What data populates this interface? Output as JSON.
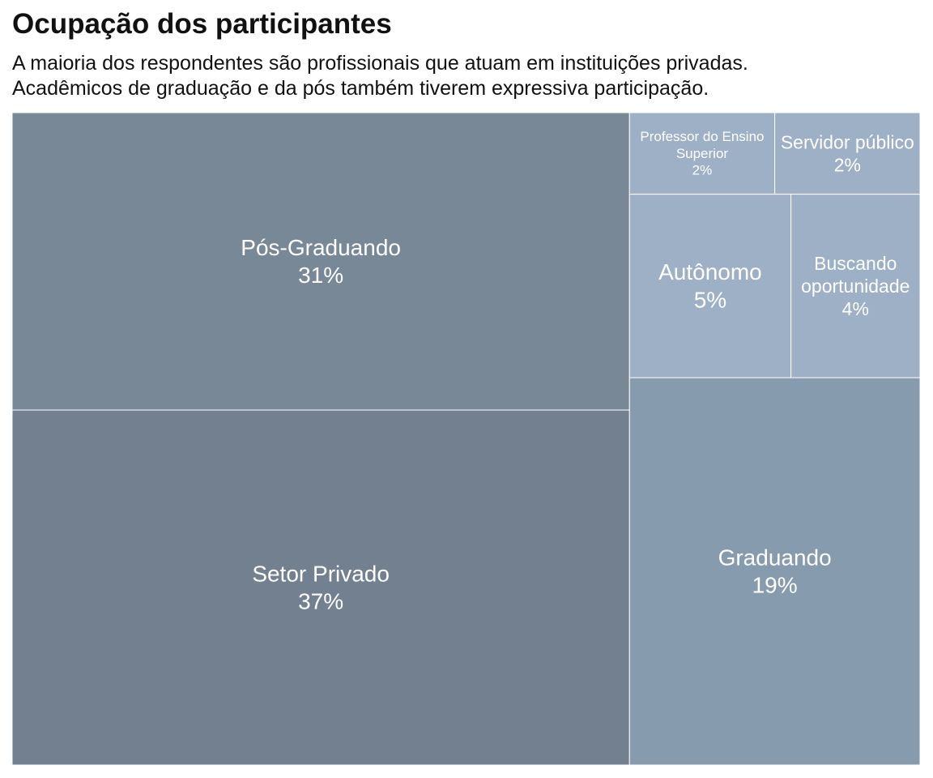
{
  "title": "Ocupação dos participantes",
  "subtitle_lines": [
    "A maioria dos respondentes são profissionais que atuam em instituições privadas.",
    "Acadêmicos de graduação e da pós também tiverem expressiva participação."
  ],
  "chart_data": {
    "type": "treemap",
    "title": "Ocupação dos participantes",
    "unit": "%",
    "items": [
      {
        "label": "Setor Privado",
        "value": 37,
        "value_label": "37%",
        "color": "#72808f"
      },
      {
        "label": "Pós-Graduando",
        "value": 31,
        "value_label": "31%",
        "color": "#788896"
      },
      {
        "label": "Graduando",
        "value": 19,
        "value_label": "19%",
        "color": "#879baf"
      },
      {
        "label": "Autônomo",
        "value": 5,
        "value_label": "5%",
        "color": "#9db0c6"
      },
      {
        "label": "Buscando oportunidade",
        "value": 4,
        "value_label": "4%",
        "color": "#9db0c6"
      },
      {
        "label": "Professor do Ensino Superior",
        "value": 2,
        "value_label": "2%",
        "color": "#9db0c6"
      },
      {
        "label": "Servidor público",
        "value": 2,
        "value_label": "2%",
        "color": "#9db0c6"
      }
    ]
  }
}
